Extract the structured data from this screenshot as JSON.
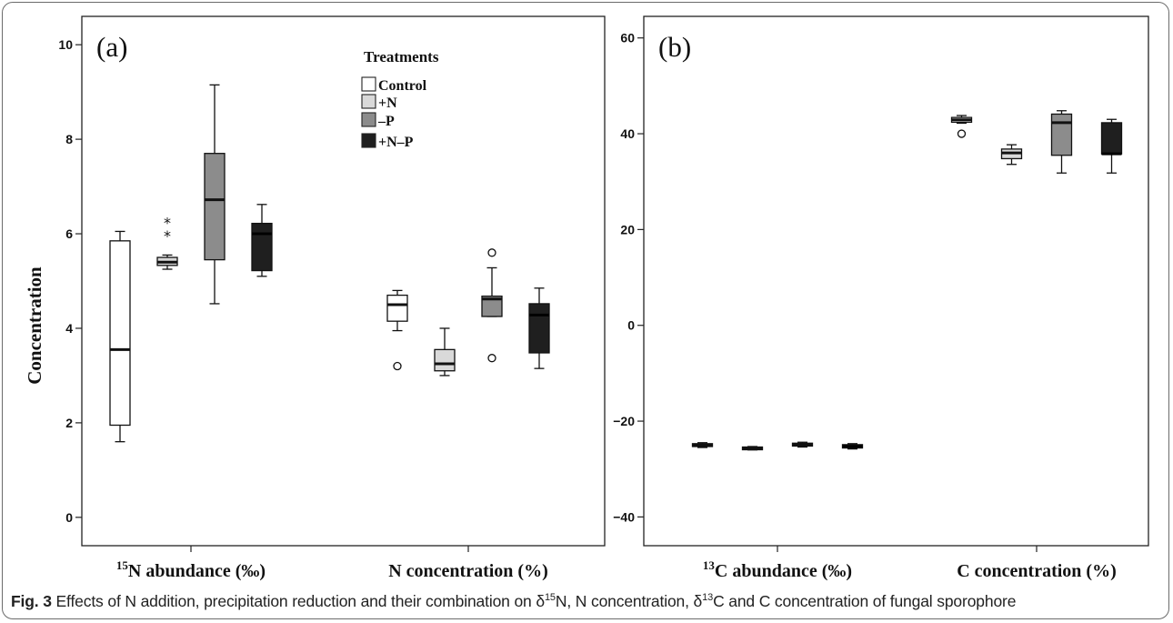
{
  "y_axis_label": "Concentration",
  "legend": {
    "title": "Treatments",
    "items": [
      {
        "label": "Control",
        "color": "#ffffff"
      },
      {
        "label": "+N",
        "color": "#d9d9d9"
      },
      {
        "label": "–P",
        "color": "#8c8c8c"
      },
      {
        "label": "+N–P",
        "color": "#1f1f1f"
      }
    ]
  },
  "caption": {
    "fig_label": "Fig. 3",
    "text_parts": [
      "Effects of N addition, precipitation reduction and their combination on δ",
      "15",
      "N, N concentration, δ",
      "13",
      "C and C concentration of fungal sporophore"
    ]
  },
  "chart_data": [
    {
      "type": "box",
      "panel_label": "(a)",
      "ylim": [
        -0.6,
        10.6
      ],
      "yticks": [
        0,
        2,
        4,
        6,
        8,
        10
      ],
      "groups": [
        {
          "pre": "15",
          "label": "N abundance (‰)"
        },
        {
          "pre": "",
          "label": "N concentration (%)"
        }
      ],
      "series": [
        {
          "name": "Control",
          "boxes": [
            {
              "min": 1.6,
              "q1": 1.95,
              "median": 3.55,
              "q3": 5.85,
              "max": 6.05,
              "outliers": [],
              "extremes": []
            },
            {
              "min": 3.95,
              "q1": 4.15,
              "median": 4.5,
              "q3": 4.7,
              "max": 4.8,
              "outliers": [
                3.2
              ],
              "extremes": []
            }
          ]
        },
        {
          "name": "+N",
          "boxes": [
            {
              "min": 5.25,
              "q1": 5.33,
              "median": 5.4,
              "q3": 5.5,
              "max": 5.55,
              "outliers": [],
              "extremes": [
                6.0,
                6.28
              ]
            },
            {
              "min": 3.0,
              "q1": 3.1,
              "median": 3.25,
              "q3": 3.55,
              "max": 4.0,
              "outliers": [],
              "extremes": []
            }
          ]
        },
        {
          "name": "–P",
          "boxes": [
            {
              "min": 4.52,
              "q1": 5.45,
              "median": 6.72,
              "q3": 7.7,
              "max": 9.15,
              "outliers": [],
              "extremes": []
            },
            {
              "min": 4.25,
              "q1": 4.25,
              "median": 4.62,
              "q3": 4.68,
              "max": 5.28,
              "outliers": [
                5.6,
                3.37
              ],
              "extremes": []
            }
          ]
        },
        {
          "name": "+N–P",
          "boxes": [
            {
              "min": 5.1,
              "q1": 5.22,
              "median": 6.0,
              "q3": 6.22,
              "max": 6.62,
              "outliers": [],
              "extremes": []
            },
            {
              "min": 3.15,
              "q1": 3.48,
              "median": 4.28,
              "q3": 4.52,
              "max": 4.85,
              "outliers": [],
              "extremes": []
            }
          ]
        }
      ]
    },
    {
      "type": "box",
      "panel_label": "(b)",
      "ylim": [
        -46,
        64.5
      ],
      "yticks": [
        -40,
        -20,
        0,
        20,
        40,
        60
      ],
      "groups": [
        {
          "pre": "13",
          "label": "C abundance (‰)"
        },
        {
          "pre": "",
          "label": "C concentration (%)"
        }
      ],
      "series": [
        {
          "name": "Control",
          "boxes": [
            {
              "min": -25.5,
              "q1": -25.3,
              "median": -25.0,
              "q3": -24.7,
              "max": -24.5,
              "outliers": [],
              "extremes": []
            },
            {
              "min": 42.2,
              "q1": 42.4,
              "median": 42.9,
              "q3": 43.4,
              "max": 43.8,
              "outliers": [
                40.0
              ],
              "extremes": []
            }
          ]
        },
        {
          "name": "+N",
          "boxes": [
            {
              "min": -26.0,
              "q1": -25.8,
              "median": -25.6,
              "q3": -25.4,
              "max": -25.3,
              "outliers": [],
              "extremes": []
            },
            {
              "min": 33.6,
              "q1": 34.8,
              "median": 36.0,
              "q3": 36.8,
              "max": 37.7,
              "outliers": [],
              "extremes": []
            }
          ]
        },
        {
          "name": "–P",
          "boxes": [
            {
              "min": -25.4,
              "q1": -25.2,
              "median": -24.9,
              "q3": -24.6,
              "max": -24.4,
              "outliers": [],
              "extremes": []
            },
            {
              "min": 31.8,
              "q1": 35.5,
              "median": 42.3,
              "q3": 44.1,
              "max": 44.8,
              "outliers": [],
              "extremes": []
            }
          ]
        },
        {
          "name": "+N–P",
          "boxes": [
            {
              "min": -25.8,
              "q1": -25.6,
              "median": -25.3,
              "q3": -24.9,
              "max": -24.7,
              "outliers": [],
              "extremes": []
            },
            {
              "min": 31.8,
              "q1": 35.8,
              "median": 35.8,
              "q3": 42.3,
              "max": 43.0,
              "outliers": [],
              "extremes": []
            }
          ]
        }
      ]
    }
  ]
}
